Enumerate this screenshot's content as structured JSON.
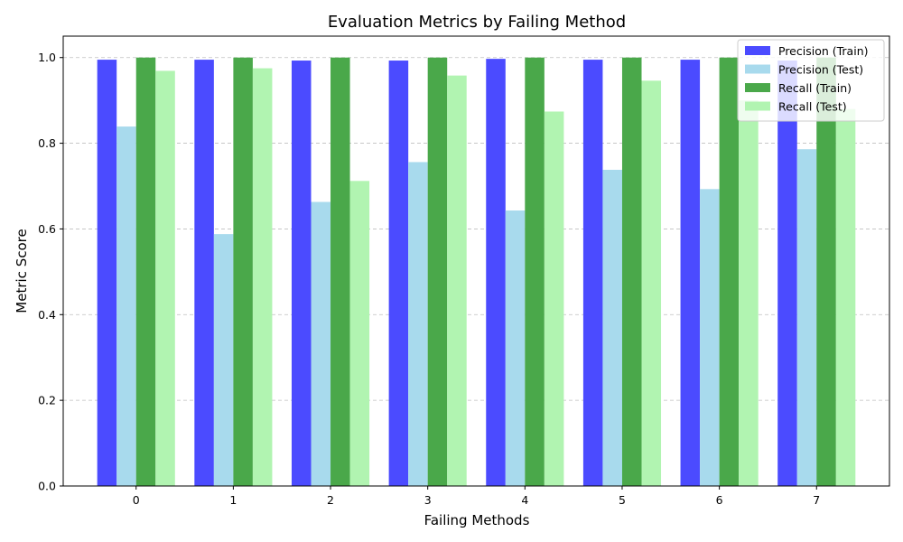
{
  "chart_data": {
    "type": "bar",
    "title": "Evaluation Metrics by Failing Method",
    "xlabel": "Failing Methods",
    "ylabel": "Metric Score",
    "categories": [
      "0",
      "1",
      "2",
      "3",
      "4",
      "5",
      "6",
      "7"
    ],
    "ylim": [
      0,
      1.05
    ],
    "yticks": [
      0.0,
      0.2,
      0.4,
      0.6,
      0.8,
      1.0
    ],
    "ytick_labels": [
      "0.0",
      "0.2",
      "0.4",
      "0.6",
      "0.8",
      "1.0"
    ],
    "grid": "y-dashed",
    "legend_position": "top-right",
    "series": [
      {
        "name": "Precision (Train)",
        "color": "#4b4bff",
        "values": [
          0.995,
          0.995,
          0.993,
          0.993,
          0.997,
          0.995,
          0.995,
          0.993
        ]
      },
      {
        "name": "Precision (Test)",
        "color": "#a8daed",
        "values": [
          0.839,
          0.588,
          0.663,
          0.756,
          0.643,
          0.738,
          0.693,
          0.786
        ]
      },
      {
        "name": "Recall (Train)",
        "color": "#4aa84a",
        "values": [
          1.0,
          1.0,
          1.0,
          1.0,
          1.0,
          1.0,
          1.0,
          1.0
        ]
      },
      {
        "name": "Recall (Test)",
        "color": "#b1f4b1",
        "values": [
          0.969,
          0.975,
          0.712,
          0.958,
          0.874,
          0.946,
          0.9,
          0.88
        ]
      }
    ]
  }
}
